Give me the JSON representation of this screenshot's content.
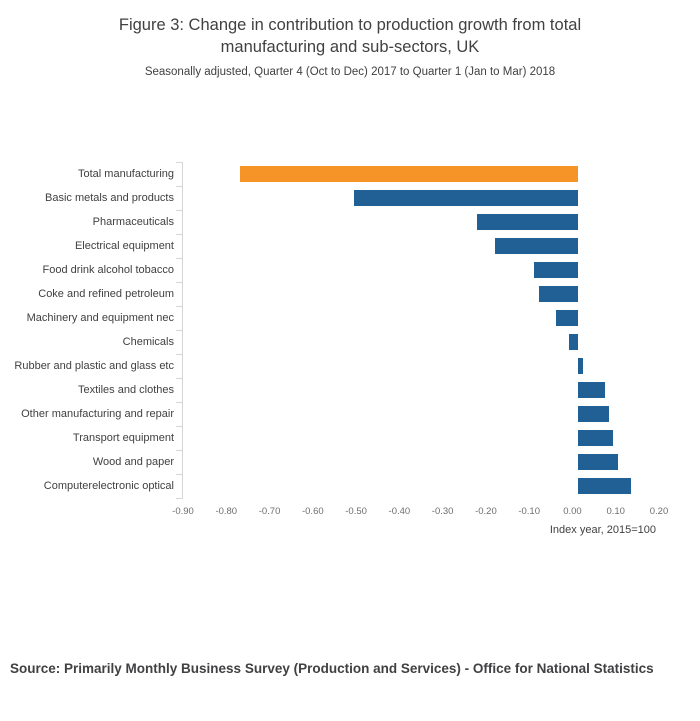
{
  "header": {
    "title": "Figure 3: Change in contribution to production growth from total manufacturing and sub-sectors, UK",
    "subtitle": "Seasonally adjusted, Quarter 4 (Oct to Dec) 2017 to Quarter 1 (Jan to Mar) 2018"
  },
  "chart_data": {
    "type": "bar",
    "orientation": "horizontal",
    "title": "Figure 3: Change in contribution to production growth from total manufacturing and sub-sectors, UK",
    "subtitle": "Seasonally adjusted, Quarter 4 (Oct to Dec) 2017 to Quarter 1 (Jan to Mar) 2018",
    "categories": [
      "Total manufacturing",
      "Basic metals and products",
      "Pharmaceuticals",
      "Electrical equipment",
      "Food drink alcohol tobacco",
      "Coke and refined petroleum",
      "Machinery and equipment nec",
      "Chemicals",
      "Rubber and plastic and glass etc",
      "Textiles and clothes",
      "Other manufacturing and repair",
      "Transport equipment",
      "Wood and paper",
      "Computerelectronic optical"
    ],
    "values": [
      -0.77,
      -0.51,
      -0.23,
      -0.19,
      -0.1,
      -0.09,
      -0.05,
      -0.02,
      0.01,
      0.06,
      0.07,
      0.08,
      0.09,
      0.12
    ],
    "highlight_index": 0,
    "colors": {
      "highlight": "#f79428",
      "default": "#206095"
    },
    "xlabel": "Index year, 2015=100",
    "xlim": [
      -0.9,
      0.2
    ],
    "xticks": [
      -0.9,
      -0.8,
      -0.7,
      -0.6,
      -0.5,
      -0.4,
      -0.3,
      -0.2,
      -0.1,
      0.0,
      0.1,
      0.2
    ],
    "xtick_labels": [
      "-0.90",
      "-0.80",
      "-0.70",
      "-0.60",
      "-0.50",
      "-0.40",
      "-0.30",
      "-0.20",
      "-0.10",
      "0.00",
      "0.10",
      "0.20"
    ],
    "grid": false,
    "legend": "none"
  },
  "footer": {
    "source": "Source: Primarily Monthly Business Survey (Production and Services) - Office for National Statistics"
  }
}
